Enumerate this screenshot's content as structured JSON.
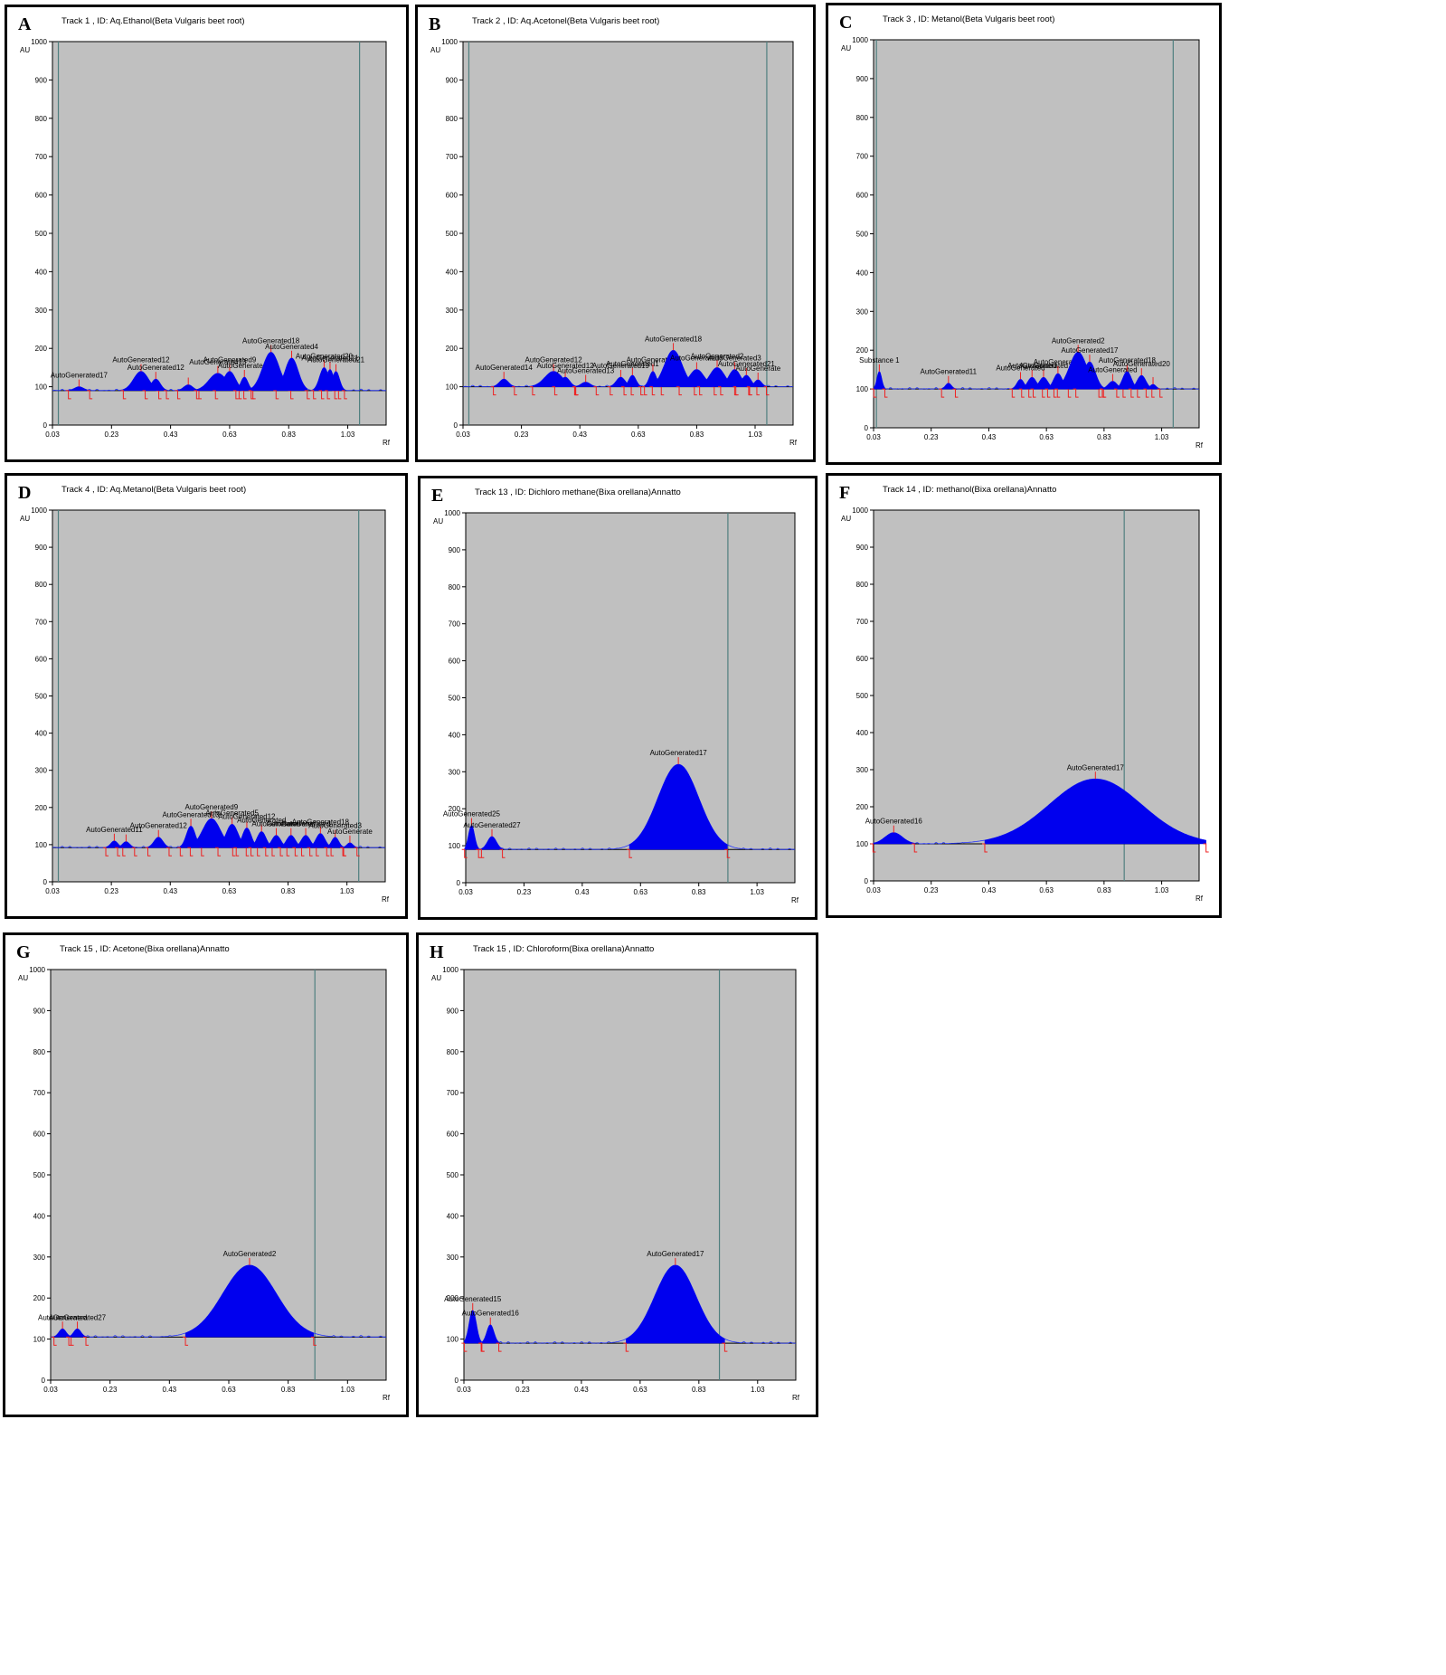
{
  "chart_data": [
    {
      "letter": "A",
      "type": "area",
      "title": "Track  1 , ID: Aq.Ethanol(Beta Vulgaris beet root)",
      "ylabel": "AU",
      "xlabel": "Rf",
      "ylim": [
        0,
        1000
      ],
      "xlim": [
        0.03,
        1.16
      ],
      "baseline": 90,
      "x_ticks": [
        "0.03",
        "0.23",
        "0.43",
        "0.63",
        "0.83",
        "1.03"
      ],
      "y_ticks": [
        "0",
        "100",
        "200",
        "300",
        "400",
        "500",
        "600",
        "700",
        "800",
        "900",
        "1000"
      ],
      "vlines": [
        0.05,
        1.07
      ],
      "peaks": [
        {
          "rf": 0.12,
          "h": 100,
          "w": 0.015,
          "label": "AutoGenerated17"
        },
        {
          "rf": 0.33,
          "h": 140,
          "w": 0.025,
          "label": "AutoGenerated12"
        },
        {
          "rf": 0.38,
          "h": 120,
          "w": 0.015,
          "label": "AutoGenerated12"
        },
        {
          "rf": 0.49,
          "h": 105,
          "w": 0.015,
          "label": ""
        },
        {
          "rf": 0.59,
          "h": 135,
          "w": 0.03,
          "label": "AutoGenerated13"
        },
        {
          "rf": 0.63,
          "h": 140,
          "w": 0.02,
          "label": "AutoGenerated9"
        },
        {
          "rf": 0.68,
          "h": 125,
          "w": 0.012,
          "label": "AutoGenerated5"
        },
        {
          "rf": 0.77,
          "h": 190,
          "w": 0.028,
          "label": "AutoGenerated18"
        },
        {
          "rf": 0.84,
          "h": 175,
          "w": 0.022,
          "label": "AutoGenerated4"
        },
        {
          "rf": 0.95,
          "h": 150,
          "w": 0.015,
          "label": "AutoGenerated20"
        },
        {
          "rf": 0.97,
          "h": 145,
          "w": 0.012,
          "label": "AutoGenerated21"
        },
        {
          "rf": 0.99,
          "h": 140,
          "w": 0.012,
          "label": "AutoGenerated21"
        }
      ]
    },
    {
      "letter": "B",
      "type": "area",
      "title": "Track  2 , ID: Aq.Acetonel(Beta Vulgaris beet root)",
      "ylabel": "AU",
      "xlabel": "Rf",
      "ylim": [
        0,
        1000
      ],
      "xlim": [
        0.03,
        1.16
      ],
      "baseline": 100,
      "x_ticks": [
        "0.03",
        "0.23",
        "0.43",
        "0.63",
        "0.83",
        "1.03"
      ],
      "y_ticks": [
        "0",
        "100",
        "200",
        "300",
        "400",
        "500",
        "600",
        "700",
        "800",
        "900",
        "1000"
      ],
      "vlines": [
        0.05,
        1.07
      ],
      "peaks": [
        {
          "rf": 0.17,
          "h": 120,
          "w": 0.015,
          "label": "AutoGenerated14"
        },
        {
          "rf": 0.34,
          "h": 140,
          "w": 0.03,
          "label": "AutoGenerated12"
        },
        {
          "rf": 0.38,
          "h": 125,
          "w": 0.015,
          "label": "AutoGenerated12"
        },
        {
          "rf": 0.45,
          "h": 112,
          "w": 0.015,
          "label": "AutoGenerated13"
        },
        {
          "rf": 0.57,
          "h": 125,
          "w": 0.015,
          "label": "AutoGenerated19"
        },
        {
          "rf": 0.61,
          "h": 130,
          "w": 0.012,
          "label": "AutoGenerated1"
        },
        {
          "rf": 0.68,
          "h": 140,
          "w": 0.012,
          "label": "AutoGenerated6"
        },
        {
          "rf": 0.75,
          "h": 195,
          "w": 0.03,
          "label": "AutoGenerated18"
        },
        {
          "rf": 0.83,
          "h": 145,
          "w": 0.025,
          "label": "AutoGenerated3"
        },
        {
          "rf": 0.9,
          "h": 150,
          "w": 0.025,
          "label": "AutoGenerated2"
        },
        {
          "rf": 0.96,
          "h": 145,
          "w": 0.02,
          "label": "AutoGenerated3"
        },
        {
          "rf": 1.0,
          "h": 130,
          "w": 0.015,
          "label": "AutoGenerated21"
        },
        {
          "rf": 1.04,
          "h": 118,
          "w": 0.012,
          "label": "AutoGenerate"
        }
      ]
    },
    {
      "letter": "C",
      "type": "area",
      "title": "Track  3 , ID: Metanol(Beta Vulgaris beet root)",
      "ylabel": "AU",
      "xlabel": "Rf",
      "ylim": [
        0,
        1000
      ],
      "xlim": [
        0.03,
        1.16
      ],
      "baseline": 100,
      "x_ticks": [
        "0.03",
        "0.23",
        "0.43",
        "0.63",
        "0.83",
        "1.03"
      ],
      "y_ticks": [
        "0",
        "100",
        "200",
        "300",
        "400",
        "500",
        "600",
        "700",
        "800",
        "900",
        "1000"
      ],
      "vlines": [
        0.04,
        1.07
      ],
      "peaks": [
        {
          "rf": 0.05,
          "h": 145,
          "w": 0.008,
          "label": "Substance 1"
        },
        {
          "rf": 0.29,
          "h": 115,
          "w": 0.01,
          "label": "AutoGenerated11"
        },
        {
          "rf": 0.54,
          "h": 125,
          "w": 0.012,
          "label": "AutoGenerated"
        },
        {
          "rf": 0.58,
          "h": 130,
          "w": 0.015,
          "label": "AutoGenerated"
        },
        {
          "rf": 0.62,
          "h": 130,
          "w": 0.015,
          "label": "AutoGenerated"
        },
        {
          "rf": 0.67,
          "h": 140,
          "w": 0.015,
          "label": "AutoGenerated"
        },
        {
          "rf": 0.74,
          "h": 195,
          "w": 0.03,
          "label": "AutoGenerated2"
        },
        {
          "rf": 0.78,
          "h": 170,
          "w": 0.02,
          "label": "AutoGenerated17"
        },
        {
          "rf": 0.86,
          "h": 120,
          "w": 0.015,
          "label": "AutoGenerated"
        },
        {
          "rf": 0.91,
          "h": 145,
          "w": 0.015,
          "label": "AutoGenerated18"
        },
        {
          "rf": 0.96,
          "h": 135,
          "w": 0.015,
          "label": "AutoGenerated20"
        },
        {
          "rf": 1.0,
          "h": 112,
          "w": 0.01,
          "label": ""
        }
      ]
    },
    {
      "letter": "D",
      "type": "area",
      "title": "Track  4 , ID: Aq.Metanol(Beta Vulgaris beet root)",
      "ylabel": "AU",
      "xlabel": "Rf",
      "ylim": [
        0,
        1000
      ],
      "xlim": [
        0.03,
        1.16
      ],
      "baseline": 92,
      "x_ticks": [
        "0.03",
        "0.23",
        "0.43",
        "0.63",
        "0.83",
        "1.03"
      ],
      "y_ticks": [
        "0",
        "100",
        "200",
        "300",
        "400",
        "500",
        "600",
        "700",
        "800",
        "900",
        "1000"
      ],
      "vlines": [
        0.05,
        1.07
      ],
      "peaks": [
        {
          "rf": 0.24,
          "h": 110,
          "w": 0.012,
          "label": "AutoGenerated11"
        },
        {
          "rf": 0.28,
          "h": 108,
          "w": 0.012,
          "label": ""
        },
        {
          "rf": 0.39,
          "h": 120,
          "w": 0.015,
          "label": "AutoGenerated12"
        },
        {
          "rf": 0.5,
          "h": 150,
          "w": 0.015,
          "label": "AutoGenerated13"
        },
        {
          "rf": 0.57,
          "h": 170,
          "w": 0.03,
          "label": "AutoGenerated9"
        },
        {
          "rf": 0.64,
          "h": 155,
          "w": 0.02,
          "label": "AutoGenerated5"
        },
        {
          "rf": 0.69,
          "h": 145,
          "w": 0.015,
          "label": "AutoGenerated12"
        },
        {
          "rf": 0.74,
          "h": 135,
          "w": 0.015,
          "label": "AutoGenerated"
        },
        {
          "rf": 0.79,
          "h": 125,
          "w": 0.015,
          "label": "AutoGenerated"
        },
        {
          "rf": 0.84,
          "h": 125,
          "w": 0.015,
          "label": "AutoGenerated"
        },
        {
          "rf": 0.89,
          "h": 125,
          "w": 0.015,
          "label": "AutoGenerated"
        },
        {
          "rf": 0.94,
          "h": 130,
          "w": 0.015,
          "label": "AutoGenerated18"
        },
        {
          "rf": 0.99,
          "h": 120,
          "w": 0.012,
          "label": "AutoGenerated3"
        },
        {
          "rf": 1.04,
          "h": 105,
          "w": 0.01,
          "label": "AutoGenerate"
        }
      ]
    },
    {
      "letter": "E",
      "type": "area",
      "title": "Track  13 , ID: Dichloro methane(Bixa orellana)Annatto",
      "ylabel": "AU",
      "xlabel": "Rf",
      "ylim": [
        0,
        1000
      ],
      "xlim": [
        0.03,
        1.16
      ],
      "baseline": 90,
      "x_ticks": [
        "0.03",
        "0.23",
        "0.43",
        "0.63",
        "0.83",
        "1.03"
      ],
      "y_ticks": [
        "0",
        "100",
        "200",
        "300",
        "400",
        "500",
        "600",
        "700",
        "800",
        "900",
        "1000"
      ],
      "vlines": [
        0.93
      ],
      "peaks": [
        {
          "rf": 0.05,
          "h": 155,
          "w": 0.01,
          "label": "AutoGenerated25"
        },
        {
          "rf": 0.12,
          "h": 125,
          "w": 0.015,
          "label": "AutoGenerated27"
        },
        {
          "rf": 0.76,
          "h": 320,
          "w": 0.07,
          "label": "AutoGenerated17"
        }
      ]
    },
    {
      "letter": "F",
      "type": "area",
      "title": "Track  14 , ID: methanol(Bixa orellana)Annatto",
      "ylabel": "AU",
      "xlabel": "Rf",
      "ylim": [
        0,
        1000
      ],
      "xlim": [
        0.03,
        1.16
      ],
      "baseline": 100,
      "x_ticks": [
        "0.03",
        "0.23",
        "0.43",
        "0.63",
        "0.83",
        "1.03"
      ],
      "y_ticks": [
        "0",
        "100",
        "200",
        "300",
        "400",
        "500",
        "600",
        "700",
        "800",
        "900",
        "1000"
      ],
      "vlines": [
        0.9
      ],
      "peaks": [
        {
          "rf": 0.1,
          "h": 130,
          "w": 0.03,
          "label": "AutoGenerated16"
        },
        {
          "rf": 0.8,
          "h": 275,
          "w": 0.16,
          "label": "AutoGenerated17"
        }
      ]
    },
    {
      "letter": "G",
      "type": "area",
      "title": "Track  15 , ID: Acetone(Bixa orellana)Annatto",
      "ylabel": "AU",
      "xlabel": "Rf",
      "ylim": [
        0,
        1000
      ],
      "xlim": [
        0.03,
        1.16
      ],
      "baseline": 105,
      "x_ticks": [
        "0.03",
        "0.23",
        "0.43",
        "0.63",
        "0.83",
        "1.03"
      ],
      "y_ticks": [
        "0",
        "100",
        "200",
        "300",
        "400",
        "500",
        "600",
        "700",
        "800",
        "900",
        "1000"
      ],
      "vlines": [
        0.92
      ],
      "peaks": [
        {
          "rf": 0.07,
          "h": 125,
          "w": 0.012,
          "label": "AutoGenerated"
        },
        {
          "rf": 0.12,
          "h": 125,
          "w": 0.012,
          "label": "AutoGenerated27"
        },
        {
          "rf": 0.7,
          "h": 280,
          "w": 0.09,
          "label": "AutoGenerated2"
        }
      ]
    },
    {
      "letter": "H",
      "type": "area",
      "title": "Track  15 , ID: Chloroform(Bixa orellana)Annatto",
      "ylabel": "AU",
      "xlabel": "Rf",
      "ylim": [
        0,
        1000
      ],
      "xlim": [
        0.03,
        1.16
      ],
      "baseline": 90,
      "x_ticks": [
        "0.03",
        "0.23",
        "0.43",
        "0.63",
        "0.83",
        "1.03"
      ],
      "y_ticks": [
        "0",
        "100",
        "200",
        "300",
        "400",
        "500",
        "600",
        "700",
        "800",
        "900",
        "1000"
      ],
      "vlines": [
        0.9
      ],
      "peaks": [
        {
          "rf": 0.06,
          "h": 170,
          "w": 0.012,
          "label": "AutoGenerated15"
        },
        {
          "rf": 0.12,
          "h": 135,
          "w": 0.012,
          "label": "AutoGenerated16"
        },
        {
          "rf": 0.75,
          "h": 280,
          "w": 0.07,
          "label": "AutoGenerated17"
        }
      ]
    }
  ],
  "colors": {
    "plot_bg": "#c0c0c0",
    "fill": "#0000ee",
    "trace": "#2233ff",
    "marker": "#ee2222",
    "vline": "#4f7f7f",
    "axis": "#000000"
  }
}
